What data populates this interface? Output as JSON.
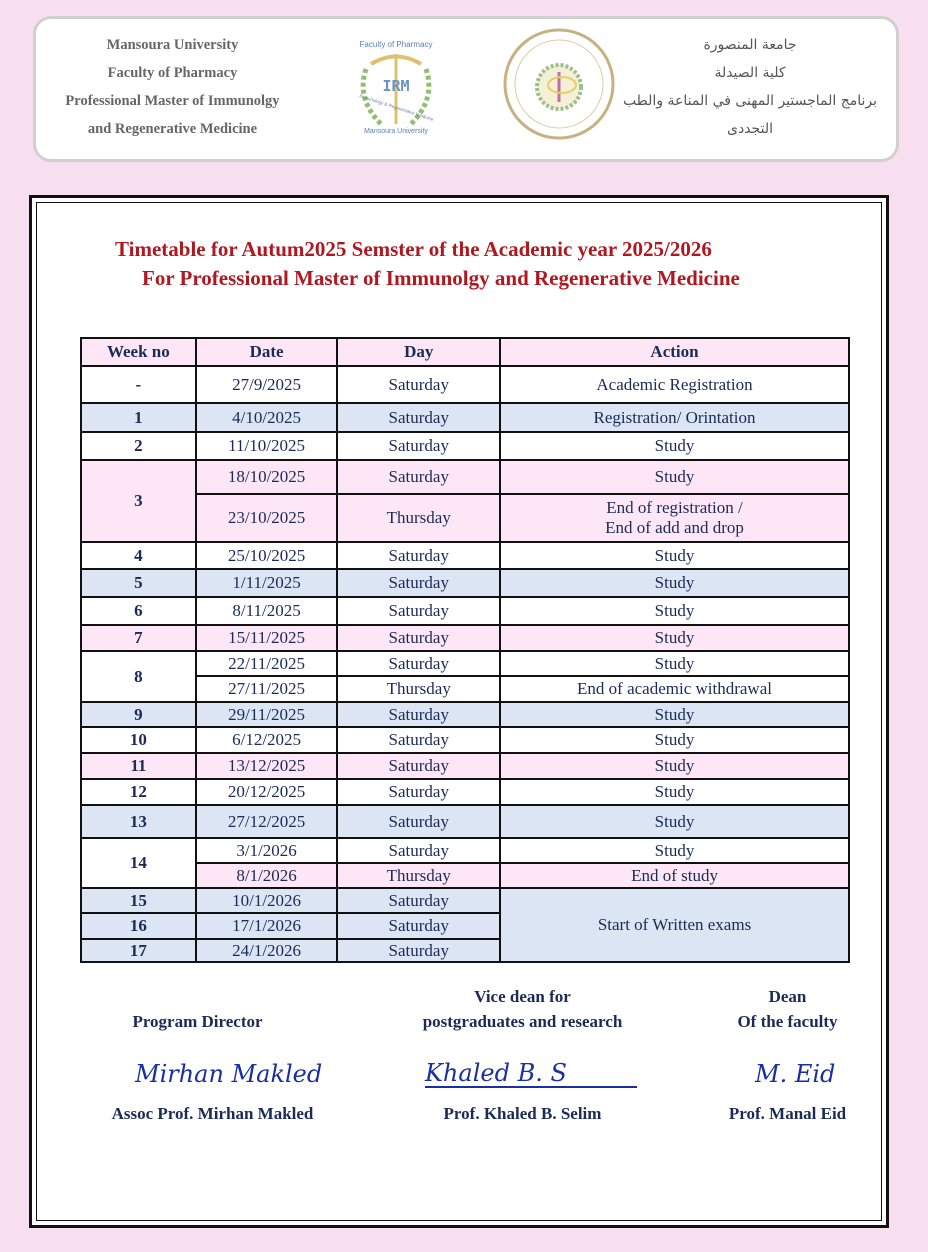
{
  "header": {
    "left_lines": [
      "Mansoura University",
      "Faculty of Pharmacy",
      "Professional Master of Immunolgy",
      "and Regenerative Medicine"
    ],
    "right_lines": [
      "جامعة المنصورة",
      "كلية الصيدلة",
      "برنامج الماجستير المهنى في المناعة والطب",
      "التجددى"
    ],
    "logo1_text": [
      "Faculty of Pharmacy",
      "IRM",
      "Immunology & Regenerative Medicine",
      "Mansoura University"
    ],
    "logo2_text": [
      "كلية الصيدلة",
      "FACULTY OF PHARMACY",
      "جامعة المنصورة"
    ]
  },
  "title": {
    "line1": "Timetable for Autum2025 Semster of the Academic year 2025/2026",
    "line2": "For Professional Master of Immunolgy and Regenerative Medicine"
  },
  "table": {
    "headers": [
      "Week no",
      "Date",
      "Day",
      "Action"
    ],
    "rows": [
      {
        "week": "-",
        "date": "27/9/2025",
        "day": "Saturday",
        "action": "Academic Registration",
        "bg": "white"
      },
      {
        "week": "1",
        "date": "4/10/2025",
        "day": "Saturday",
        "action": "Registration/ Orintation",
        "bg": "blue"
      },
      {
        "week": "2",
        "date": "11/10/2025",
        "day": "Saturday",
        "action": "Study",
        "bg": "white"
      },
      {
        "week": "3",
        "date": "18/10/2025",
        "day": "Saturday",
        "action": "Study",
        "bg": "pink"
      },
      {
        "week": "",
        "date": "23/10/2025",
        "day": "Thursday",
        "action": "End of registration /\nEnd of add and drop",
        "bg": "pink"
      },
      {
        "week": "4",
        "date": "25/10/2025",
        "day": "Saturday",
        "action": "Study",
        "bg": "white"
      },
      {
        "week": "5",
        "date": "1/11/2025",
        "day": "Saturday",
        "action": "Study",
        "bg": "blue"
      },
      {
        "week": "6",
        "date": "8/11/2025",
        "day": "Saturday",
        "action": "Study",
        "bg": "white"
      },
      {
        "week": "7",
        "date": "15/11/2025",
        "day": "Saturday",
        "action": "Study",
        "bg": "pink"
      },
      {
        "week": "8",
        "date": "22/11/2025",
        "day": "Saturday",
        "action": "Study",
        "bg": "white"
      },
      {
        "week": "",
        "date": "27/11/2025",
        "day": "Thursday",
        "action": "End of academic withdrawal",
        "bg": "white"
      },
      {
        "week": "9",
        "date": "29/11/2025",
        "day": "Saturday",
        "action": "Study",
        "bg": "blue"
      },
      {
        "week": "10",
        "date": "6/12/2025",
        "day": "Saturday",
        "action": "Study",
        "bg": "white"
      },
      {
        "week": "11",
        "date": "13/12/2025",
        "day": "Saturday",
        "action": "Study",
        "bg": "pink"
      },
      {
        "week": "12",
        "date": "20/12/2025",
        "day": "Saturday",
        "action": "Study",
        "bg": "white"
      },
      {
        "week": "13",
        "date": "27/12/2025",
        "day": "Saturday",
        "action": "Study",
        "bg": "blue"
      },
      {
        "week": "14",
        "date": "3/1/2026",
        "day": "Saturday",
        "action": "Study",
        "bg": "white"
      },
      {
        "week": "",
        "date": "8/1/2026",
        "day": "Thursday",
        "action": "End of study",
        "bg": "pink"
      },
      {
        "week": "15",
        "date": "10/1/2026",
        "day": "Saturday",
        "action": "Start of Written exams",
        "bg": "blue"
      },
      {
        "week": "16",
        "date": "17/1/2026",
        "day": "Saturday",
        "action": "",
        "bg": "blue"
      },
      {
        "week": "17",
        "date": "24/1/2026",
        "day": "Saturday",
        "action": "",
        "bg": "blue"
      }
    ]
  },
  "signatures": [
    {
      "role": "Program Director",
      "signature": "Mirhan Makled",
      "name": "Assoc Prof. Mirhan  Makled"
    },
    {
      "role": "Vice dean for\npostgraduates and research",
      "signature": "Khaled B. S",
      "name": "Prof. Khaled B. Selim"
    },
    {
      "role": "Dean\nOf the faculty",
      "signature": "M. Eid",
      "name": "Prof. Manal Eid"
    }
  ]
}
